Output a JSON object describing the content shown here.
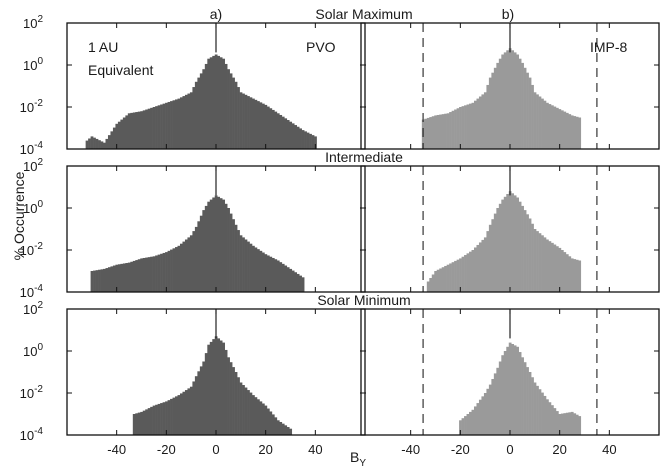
{
  "chart_data": {
    "type": "area",
    "xlabel": "B_Y",
    "ylabel": "% Occurrence",
    "xlim": [
      -60,
      60
    ],
    "ylim_log10": [
      -4,
      2
    ],
    "xticks": [
      "-40",
      "-20",
      "0",
      "20",
      "40"
    ],
    "yticks": [
      {
        "base": "10",
        "exp": "2"
      },
      {
        "base": "10",
        "exp": "0"
      },
      {
        "base": "10",
        "exp": "-2"
      },
      {
        "base": "10",
        "exp": "-4"
      }
    ],
    "column_labels": [
      "a)",
      "b)"
    ],
    "row_titles": [
      "Solar Maximum",
      "Intermediate",
      "Solar Minimum"
    ],
    "insets": {
      "left_line1": "1 AU",
      "left_line2": "Equivalent",
      "left_right": "PVO",
      "right_right": "IMP-8"
    },
    "dashed_lines_x": [
      -35,
      35
    ],
    "colors": {
      "PVO": "#5a5a5a",
      "IMP-8": "#9a9a9a",
      "frame": "#111111"
    },
    "series": [
      {
        "name": "PVO",
        "row": 0,
        "col": 0,
        "x": [
          -52,
          -50,
          -45,
          -40,
          -35,
          -30,
          -25,
          -20,
          -15,
          -10,
          -8,
          -5,
          -3,
          0,
          3,
          5,
          8,
          10,
          15,
          20,
          25,
          30,
          35,
          40
        ],
        "log10_y": [
          -3.6,
          -3.4,
          -3.7,
          -2.8,
          -2.3,
          -2.2,
          -2.0,
          -1.8,
          -1.6,
          -1.3,
          -0.8,
          -0.2,
          0.3,
          0.5,
          0.3,
          -0.2,
          -0.8,
          -1.3,
          -1.6,
          -1.9,
          -2.3,
          -2.7,
          -3.1,
          -3.4
        ]
      },
      {
        "name": "IMP-8",
        "row": 0,
        "col": 1,
        "x": [
          -35,
          -30,
          -25,
          -20,
          -15,
          -10,
          -8,
          -5,
          -3,
          0,
          3,
          5,
          8,
          10,
          15,
          20,
          25,
          28
        ],
        "log10_y": [
          -2.6,
          -2.4,
          -2.3,
          -2.0,
          -1.8,
          -1.3,
          -0.6,
          0.1,
          0.5,
          0.8,
          0.5,
          0.1,
          -0.6,
          -1.3,
          -1.8,
          -2.1,
          -2.4,
          -2.5
        ]
      },
      {
        "name": "PVO",
        "row": 1,
        "col": 0,
        "x": [
          -50,
          -45,
          -40,
          -35,
          -30,
          -25,
          -20,
          -15,
          -10,
          -8,
          -5,
          -3,
          0,
          3,
          5,
          8,
          10,
          15,
          20,
          25,
          30,
          35
        ],
        "log10_y": [
          -3.0,
          -2.9,
          -2.7,
          -2.6,
          -2.4,
          -2.3,
          -2.1,
          -1.8,
          -1.3,
          -0.9,
          -0.1,
          0.3,
          0.6,
          0.4,
          0.0,
          -0.8,
          -1.3,
          -1.8,
          -2.2,
          -2.5,
          -2.9,
          -3.3
        ]
      },
      {
        "name": "IMP-8",
        "row": 1,
        "col": 1,
        "x": [
          -33,
          -30,
          -25,
          -20,
          -15,
          -10,
          -8,
          -5,
          -3,
          0,
          3,
          5,
          8,
          10,
          15,
          20,
          25,
          28
        ],
        "log10_y": [
          -3.5,
          -3.0,
          -2.7,
          -2.4,
          -2.0,
          -1.4,
          -0.8,
          0.0,
          0.4,
          0.8,
          0.5,
          0.1,
          -0.5,
          -1.0,
          -1.5,
          -1.9,
          -2.4,
          -2.5
        ]
      },
      {
        "name": "PVO",
        "row": 2,
        "col": 0,
        "x": [
          -33,
          -30,
          -25,
          -20,
          -15,
          -10,
          -8,
          -5,
          -3,
          0,
          3,
          5,
          8,
          10,
          15,
          20,
          25,
          30
        ],
        "log10_y": [
          -3.0,
          -2.9,
          -2.6,
          -2.4,
          -2.1,
          -1.7,
          -1.2,
          -0.5,
          0.3,
          0.7,
          0.4,
          -0.3,
          -1.0,
          -1.5,
          -2.1,
          -2.6,
          -3.3,
          -3.7
        ]
      },
      {
        "name": "IMP-8",
        "row": 2,
        "col": 1,
        "x": [
          -20,
          -15,
          -10,
          -8,
          -5,
          -3,
          0,
          3,
          5,
          8,
          10,
          15,
          20,
          25,
          28
        ],
        "log10_y": [
          -3.3,
          -2.8,
          -2.0,
          -1.6,
          -0.8,
          -0.2,
          0.4,
          0.2,
          -0.3,
          -1.0,
          -1.5,
          -2.3,
          -3.0,
          -2.9,
          -3.1
        ]
      }
    ]
  }
}
